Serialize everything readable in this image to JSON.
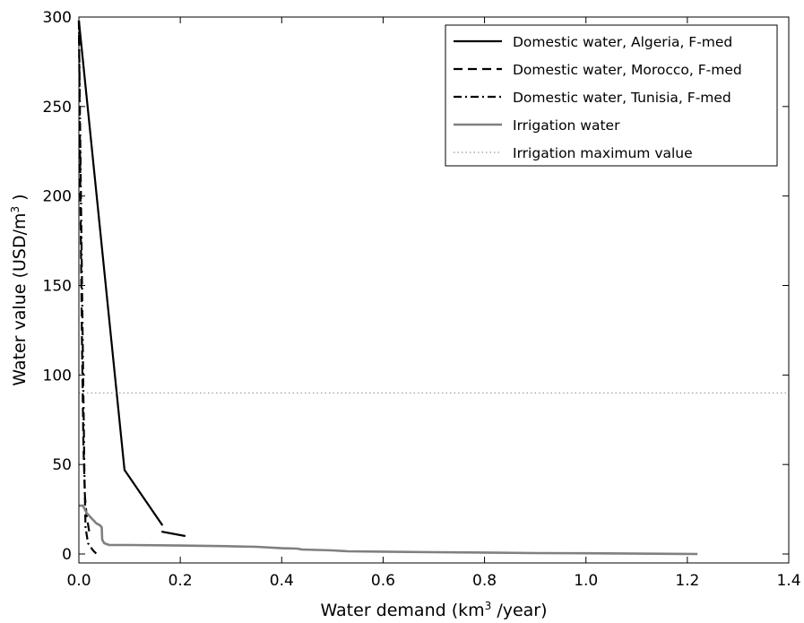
{
  "chart_data": {
    "type": "line",
    "xlabel": {
      "main": "Water demand (km",
      "sup": "3",
      "tail": " /year)"
    },
    "ylabel": {
      "main": "Water value (USD/m",
      "sup": "3",
      "tail": " )"
    },
    "xlim": [
      0.0,
      1.4
    ],
    "ylim": [
      -5,
      300
    ],
    "x_ticks": [
      0.0,
      0.2,
      0.4,
      0.6,
      0.8,
      1.0,
      1.2,
      1.4
    ],
    "x_tick_labels": [
      "0.0",
      "0.2",
      "0.4",
      "0.6",
      "0.8",
      "1.0",
      "1.2",
      "1.4"
    ],
    "y_ticks": [
      0,
      50,
      100,
      150,
      200,
      250,
      300
    ],
    "y_tick_labels": [
      "0",
      "50",
      "100",
      "150",
      "200",
      "250",
      "300"
    ],
    "grid": false,
    "legend_position": "top-right",
    "series": [
      {
        "name": "Domestic water, Algeria, F-med",
        "color": "#000000",
        "style": "solid",
        "width": 2.2,
        "segments": [
          [
            [
              0.0,
              298
            ],
            [
              0.09,
              47
            ],
            [
              0.165,
              16
            ]
          ],
          [
            [
              0.163,
              12.5
            ],
            [
              0.21,
              10
            ]
          ]
        ]
      },
      {
        "name": "Domestic water, Morocco, F-med",
        "color": "#000000",
        "style": "dashed",
        "width": 2.2,
        "segments": [
          [
            [
              0.0,
              298
            ],
            [
              0.003,
              200
            ],
            [
              0.006,
              120
            ],
            [
              0.009,
              60
            ],
            [
              0.012,
              32
            ],
            [
              0.015,
              22
            ],
            [
              0.019,
              15
            ],
            [
              0.022,
              10
            ]
          ]
        ]
      },
      {
        "name": "Domestic water, Tunisia, F-med",
        "color": "#000000",
        "style": "dashdot",
        "width": 2.2,
        "segments": [
          [
            [
              0.0,
              298
            ],
            [
              0.004,
              200
            ],
            [
              0.008,
              110
            ],
            [
              0.011,
              45
            ],
            [
              0.013,
              15
            ],
            [
              0.018,
              6
            ],
            [
              0.028,
              2
            ],
            [
              0.035,
              0
            ]
          ]
        ]
      },
      {
        "name": "Irrigation water",
        "color": "#808080",
        "style": "solid",
        "width": 2.6,
        "segments": [
          [
            [
              0.0,
              27
            ],
            [
              0.008,
              27
            ],
            [
              0.015,
              23
            ],
            [
              0.025,
              20
            ],
            [
              0.035,
              17
            ],
            [
              0.042,
              16
            ],
            [
              0.043,
              15.5
            ],
            [
              0.045,
              15
            ],
            [
              0.046,
              8
            ],
            [
              0.05,
              6
            ],
            [
              0.06,
              5
            ],
            [
              0.1,
              5
            ],
            [
              0.2,
              4.7
            ],
            [
              0.3,
              4.3
            ],
            [
              0.35,
              4
            ],
            [
              0.4,
              3.2
            ],
            [
              0.43,
              3
            ],
            [
              0.44,
              2.5
            ],
            [
              0.5,
              2
            ],
            [
              0.53,
              1.5
            ],
            [
              0.6,
              1.3
            ],
            [
              0.7,
              1
            ],
            [
              0.8,
              0.8
            ],
            [
              0.9,
              0.5
            ],
            [
              1.0,
              0.4
            ],
            [
              1.1,
              0.2
            ],
            [
              1.22,
              0
            ]
          ]
        ]
      },
      {
        "name": "Irrigation maximum value",
        "color": "#999999",
        "style": "dotted",
        "width": 1.2,
        "segments": [
          [
            [
              0.0,
              90
            ],
            [
              1.4,
              90
            ]
          ]
        ]
      }
    ]
  }
}
